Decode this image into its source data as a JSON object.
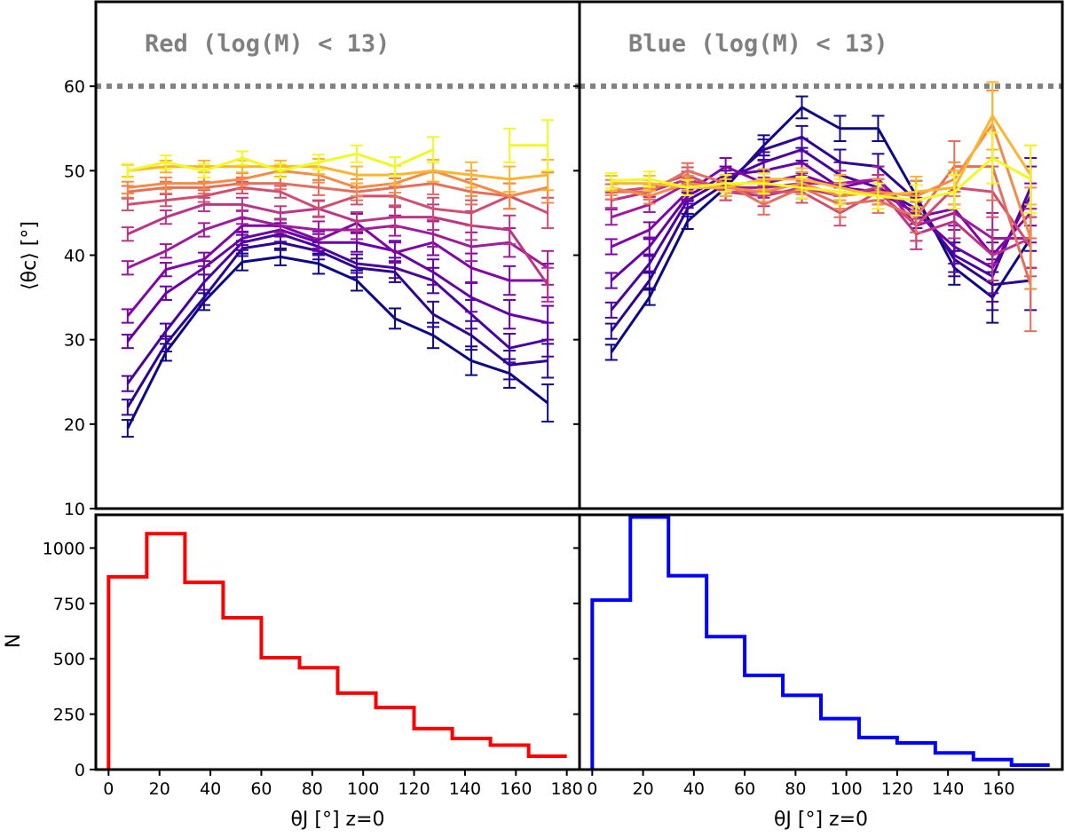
{
  "chart_data": [
    {
      "type": "line",
      "panel": "top-left",
      "title": "Red (log(M) < 13)",
      "ylabel": "⟨θc⟩ [°]",
      "ylim": [
        10,
        70
      ],
      "xlim": [
        -5,
        185
      ],
      "yticks": [
        10,
        20,
        30,
        40,
        50,
        60
      ],
      "reference_line": {
        "y": 60,
        "style": "dotted",
        "color": "#808080"
      },
      "x": [
        7.5,
        22.5,
        37.5,
        52.5,
        67.5,
        82.5,
        97.5,
        112.5,
        127.5,
        142.5,
        157.5,
        172.5
      ],
      "series": [
        {
          "color": "#0d0887",
          "values": [
            19.5,
            28.5,
            34.5,
            39.2,
            39.8,
            39.0,
            37.0,
            32.5,
            30.5,
            27.5,
            26.0,
            22.5
          ],
          "errors": [
            1.0,
            1.0,
            1.0,
            1.0,
            1.0,
            1.2,
            1.2,
            1.2,
            1.5,
            1.7,
            1.7,
            2.2
          ]
        },
        {
          "color": "#2c0594",
          "values": [
            22.0,
            29.5,
            35.0,
            40.8,
            41.5,
            40.5,
            38.5,
            38.0,
            33.0,
            30.5,
            27.0,
            27.5
          ],
          "errors": [
            0.9,
            0.9,
            0.9,
            0.9,
            0.9,
            1.0,
            1.1,
            1.2,
            1.5,
            1.7,
            1.7,
            2.0
          ]
        },
        {
          "color": "#4903a0",
          "values": [
            24.8,
            31.0,
            36.8,
            41.5,
            42.5,
            41.0,
            39.0,
            38.5,
            37.0,
            33.0,
            29.0,
            30.0
          ],
          "errors": [
            0.9,
            0.9,
            0.9,
            0.9,
            0.9,
            1.0,
            1.1,
            1.2,
            1.5,
            1.7,
            1.7,
            2.0
          ]
        },
        {
          "color": "#6600a7",
          "values": [
            29.8,
            35.5,
            38.5,
            42.0,
            43.0,
            41.5,
            41.5,
            40.5,
            38.0,
            35.0,
            33.0,
            32.0
          ],
          "errors": [
            0.8,
            0.8,
            0.8,
            0.8,
            0.8,
            1.0,
            1.1,
            1.2,
            1.5,
            1.7,
            1.7,
            2.0
          ]
        },
        {
          "color": "#8004a8",
          "values": [
            32.8,
            38.3,
            39.5,
            43.5,
            43.5,
            41.8,
            43.8,
            40.3,
            41.5,
            38.5,
            37.0,
            37.0
          ],
          "errors": [
            0.8,
            0.8,
            0.8,
            0.8,
            0.8,
            1.0,
            1.1,
            1.2,
            1.5,
            1.7,
            1.7,
            2.0
          ]
        },
        {
          "color": "#a01a9c",
          "values": [
            38.5,
            40.5,
            43.0,
            44.5,
            43.5,
            43.0,
            43.0,
            43.5,
            42.5,
            41.0,
            41.5,
            38.5
          ],
          "errors": [
            0.8,
            0.8,
            0.8,
            0.8,
            0.8,
            1.0,
            1.1,
            1.2,
            1.5,
            1.7,
            1.7,
            2.0
          ]
        },
        {
          "color": "#bc3587",
          "values": [
            42.5,
            44.5,
            46.0,
            46.0,
            45.0,
            45.5,
            44.0,
            44.5,
            44.5,
            43.5,
            43.0,
            36.5
          ],
          "errors": [
            0.8,
            0.8,
            0.8,
            0.8,
            0.8,
            1.0,
            1.1,
            1.2,
            1.5,
            1.7,
            1.7,
            2.0
          ]
        },
        {
          "color": "#d14e72",
          "values": [
            46.0,
            46.5,
            47.0,
            48.0,
            47.5,
            45.5,
            47.0,
            47.0,
            45.5,
            45.0,
            47.0,
            45.0
          ],
          "errors": [
            0.7,
            0.7,
            0.7,
            0.7,
            0.7,
            0.9,
            1.0,
            1.1,
            1.3,
            1.5,
            1.5,
            1.8
          ]
        },
        {
          "color": "#e76e5b",
          "values": [
            47.5,
            48.0,
            48.0,
            48.5,
            48.5,
            48.0,
            47.5,
            48.0,
            48.5,
            47.5,
            47.0,
            48.0
          ],
          "errors": [
            0.7,
            0.7,
            0.7,
            0.7,
            0.7,
            0.9,
            1.0,
            1.1,
            1.3,
            1.5,
            1.5,
            1.8
          ]
        },
        {
          "color": "#f58c46",
          "values": [
            48.0,
            48.5,
            48.5,
            49.0,
            50.0,
            49.5,
            48.0,
            48.5,
            50.0,
            48.5,
            47.0,
            48.0
          ],
          "errors": [
            0.7,
            0.7,
            0.7,
            0.7,
            0.7,
            0.9,
            1.0,
            1.1,
            1.3,
            1.5,
            1.5,
            1.8
          ]
        },
        {
          "color": "#fdb42f",
          "values": [
            50.0,
            50.5,
            50.5,
            50.5,
            50.5,
            50.5,
            49.5,
            49.5,
            50.0,
            49.5,
            49.0,
            49.5
          ],
          "errors": [
            0.7,
            0.7,
            0.7,
            0.7,
            0.7,
            0.9,
            1.0,
            1.1,
            1.3,
            1.5,
            1.5,
            1.8
          ]
        },
        {
          "color": "#f0f921",
          "values": [
            50.0,
            51.0,
            50.0,
            51.5,
            50.0,
            51.0,
            52.0,
            50.5,
            52.5,
            null,
            53.0,
            53.0
          ],
          "errors": [
            0.8,
            0.8,
            0.8,
            0.8,
            0.8,
            0.9,
            1.0,
            1.1,
            1.5,
            null,
            2.0,
            3.0
          ]
        }
      ]
    },
    {
      "type": "line",
      "panel": "top-right",
      "title": "Blue (log(M) < 13)",
      "ylim": [
        10,
        70
      ],
      "xlim": [
        -5,
        185
      ],
      "reference_line": {
        "y": 60,
        "style": "dotted",
        "color": "#808080"
      },
      "x": [
        7.5,
        22.5,
        37.5,
        52.5,
        67.5,
        82.5,
        97.5,
        112.5,
        127.5,
        142.5,
        157.5,
        172.5
      ],
      "series": [
        {
          "color": "#0d0887",
          "values": [
            28.5,
            35.0,
            44.0,
            48.0,
            53.0,
            57.5,
            55.0,
            55.0,
            47.0,
            38.5,
            35.0,
            42.0
          ],
          "errors": [
            0.9,
            0.9,
            0.9,
            1.0,
            1.2,
            1.3,
            1.5,
            1.5,
            1.8,
            2.0,
            3.0,
            3.5
          ]
        },
        {
          "color": "#2c0594",
          "values": [
            31.0,
            37.0,
            45.5,
            48.5,
            52.5,
            54.0,
            51.0,
            50.5,
            46.5,
            39.5,
            36.5,
            37.0
          ],
          "errors": [
            0.9,
            0.9,
            0.9,
            1.0,
            1.2,
            1.3,
            1.5,
            1.5,
            1.8,
            2.0,
            3.0,
            3.5
          ]
        },
        {
          "color": "#4903a0",
          "values": [
            33.5,
            39.0,
            46.5,
            49.0,
            51.0,
            52.5,
            49.5,
            48.0,
            45.5,
            40.0,
            37.5,
            48.0
          ],
          "errors": [
            0.9,
            0.9,
            0.9,
            1.0,
            1.2,
            1.3,
            1.5,
            1.5,
            1.8,
            2.0,
            3.0,
            3.5
          ]
        },
        {
          "color": "#6600a7",
          "values": [
            37.0,
            41.0,
            47.0,
            49.5,
            50.0,
            51.0,
            48.0,
            47.5,
            45.0,
            41.0,
            38.5,
            47.0
          ],
          "errors": [
            0.9,
            0.9,
            0.9,
            1.0,
            1.2,
            1.3,
            1.5,
            1.5,
            1.8,
            2.0,
            3.0,
            3.5
          ]
        },
        {
          "color": "#8004a8",
          "values": [
            41.0,
            43.0,
            47.5,
            50.5,
            48.5,
            49.5,
            48.0,
            49.0,
            44.5,
            45.5,
            40.0,
            45.0
          ],
          "errors": [
            0.9,
            0.9,
            0.9,
            1.0,
            1.2,
            1.3,
            1.5,
            1.5,
            1.8,
            2.0,
            3.0,
            3.5
          ]
        },
        {
          "color": "#a01a9c",
          "values": [
            44.5,
            46.0,
            48.5,
            48.0,
            48.0,
            48.5,
            48.5,
            49.0,
            43.5,
            45.0,
            42.0,
            42.0
          ],
          "errors": [
            0.9,
            0.9,
            0.9,
            1.0,
            1.2,
            1.3,
            1.5,
            1.5,
            1.8,
            2.0,
            3.0,
            3.5
          ]
        },
        {
          "color": "#bc3587",
          "values": [
            46.5,
            47.5,
            49.0,
            47.5,
            47.0,
            48.0,
            47.0,
            48.0,
            42.5,
            44.0,
            40.0,
            42.0
          ],
          "errors": [
            0.9,
            0.9,
            0.9,
            1.0,
            1.2,
            1.3,
            1.5,
            1.5,
            1.8,
            2.0,
            3.0,
            3.5
          ]
        },
        {
          "color": "#d14e72",
          "values": [
            47.5,
            48.0,
            49.5,
            47.5,
            47.5,
            47.5,
            45.0,
            47.5,
            43.5,
            48.0,
            47.5,
            41.0
          ],
          "errors": [
            0.9,
            0.9,
            0.9,
            1.0,
            1.2,
            1.3,
            1.5,
            1.5,
            1.8,
            2.0,
            3.0,
            3.5
          ]
        },
        {
          "color": "#e76e5b",
          "values": [
            47.5,
            47.5,
            50.0,
            48.5,
            46.0,
            48.0,
            46.0,
            46.5,
            44.5,
            50.5,
            50.5,
            36.5
          ],
          "errors": [
            0.9,
            0.9,
            0.9,
            1.0,
            1.2,
            1.3,
            1.5,
            1.5,
            1.8,
            3.0,
            4.0,
            5.5
          ]
        },
        {
          "color": "#f58c46",
          "values": [
            48.0,
            47.0,
            48.5,
            48.0,
            47.5,
            48.5,
            47.0,
            47.5,
            47.0,
            49.0,
            55.5,
            42.0
          ],
          "errors": [
            0.9,
            0.9,
            0.9,
            1.0,
            1.2,
            1.3,
            1.5,
            1.5,
            1.8,
            2.0,
            4.0,
            6.0
          ]
        },
        {
          "color": "#fdb42f",
          "values": [
            48.5,
            48.5,
            48.0,
            48.0,
            49.0,
            49.0,
            48.0,
            47.0,
            47.5,
            48.0,
            56.5,
            49.5
          ],
          "errors": [
            0.9,
            0.9,
            0.9,
            1.0,
            1.2,
            1.3,
            1.5,
            1.5,
            1.8,
            2.0,
            4.0,
            3.5
          ]
        },
        {
          "color": "#f0f921",
          "values": [
            48.8,
            49.0,
            48.0,
            48.5,
            48.5,
            48.0,
            47.5,
            47.0,
            46.5,
            47.5,
            51.5,
            49.0
          ],
          "errors": [
            0.9,
            0.9,
            0.9,
            1.0,
            1.2,
            1.3,
            1.5,
            1.5,
            1.8,
            2.0,
            3.0,
            4.0
          ]
        }
      ]
    },
    {
      "type": "histogram",
      "panel": "bottom-left",
      "color": "#ff0000",
      "ylabel": "N",
      "xlabel": "θJ [°]  z=0",
      "xlim": [
        -5,
        185
      ],
      "ylim": [
        0,
        1150
      ],
      "xticks": [
        0,
        20,
        40,
        60,
        80,
        100,
        120,
        140,
        160,
        180
      ],
      "yticks": [
        0,
        250,
        500,
        750,
        1000
      ],
      "bin_edges": [
        0,
        15,
        30,
        45,
        60,
        75,
        90,
        105,
        120,
        135,
        150,
        165,
        180
      ],
      "values": [
        870,
        1065,
        845,
        685,
        505,
        460,
        345,
        280,
        185,
        140,
        110,
        60
      ]
    },
    {
      "type": "histogram",
      "panel": "bottom-right",
      "color": "#0000ff",
      "xlabel": "θJ [°]  z=0",
      "xlim": [
        -5,
        185
      ],
      "ylim": [
        0,
        1150
      ],
      "xticks": [
        0,
        20,
        40,
        60,
        80,
        100,
        120,
        140,
        160
      ],
      "bin_edges": [
        0,
        15,
        30,
        45,
        60,
        75,
        90,
        105,
        120,
        135,
        150,
        165,
        180
      ],
      "values": [
        765,
        1140,
        875,
        600,
        425,
        335,
        230,
        145,
        120,
        75,
        45,
        20
      ]
    }
  ]
}
